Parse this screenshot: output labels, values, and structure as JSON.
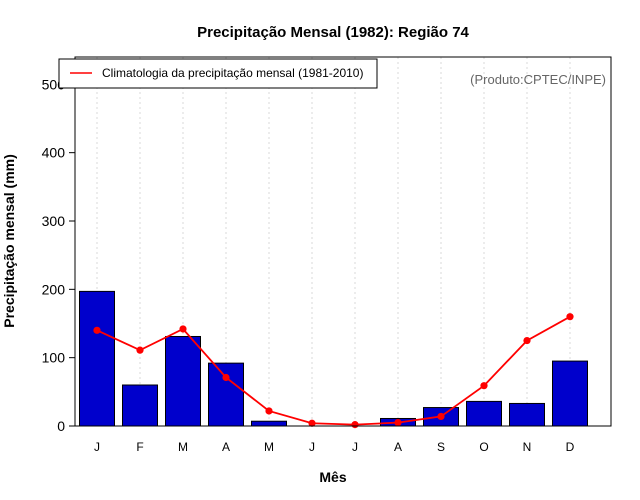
{
  "chart_data": {
    "type": "bar",
    "title": "Precipitação Mensal (1982): Região 74",
    "xlabel": "Mês",
    "ylabel": "Precipitação mensal (mm)",
    "categories": [
      "J",
      "F",
      "M",
      "A",
      "M",
      "J",
      "J",
      "A",
      "S",
      "O",
      "N",
      "D"
    ],
    "ylim": [
      0,
      540
    ],
    "yticks": [
      0,
      100,
      200,
      300,
      400,
      500
    ],
    "grid": true,
    "series": [
      {
        "name": "Precipitação mensal (1982)",
        "kind": "bar",
        "color": "#0000cc",
        "values": [
          197,
          60,
          131,
          92,
          7,
          0,
          0,
          11,
          27,
          36,
          33,
          95
        ]
      },
      {
        "name": "Climatologia da precipitação mensal (1981-2010)",
        "kind": "line",
        "color": "#ff0000",
        "values": [
          140,
          111,
          142,
          71,
          22,
          4,
          2,
          5,
          14,
          59,
          125,
          160
        ]
      }
    ],
    "legend": {
      "position": "top-left",
      "entries": [
        "Climatologia da precipitação mensal (1981-2010)"
      ]
    },
    "annotation": "(Produto:CPTEC/INPE)"
  }
}
